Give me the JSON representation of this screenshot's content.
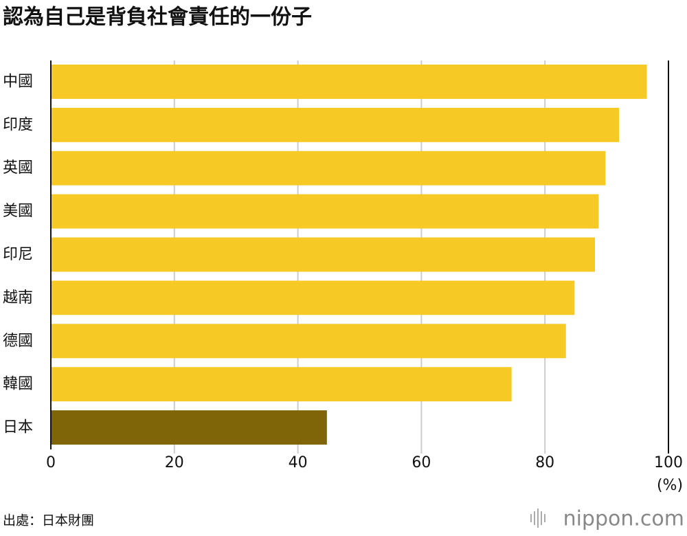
{
  "chart_data": {
    "type": "bar",
    "orientation": "horizontal",
    "title": "認為自己是背負社會責任的一份子",
    "categories": [
      "中國",
      "印度",
      "英國",
      "美國",
      "印尼",
      "越南",
      "德國",
      "韓國",
      "日本"
    ],
    "values": [
      96.5,
      92.0,
      89.8,
      88.7,
      88.1,
      84.8,
      83.4,
      74.6,
      44.7
    ],
    "colors": [
      "#f6c924",
      "#f6c924",
      "#f6c924",
      "#f6c924",
      "#f6c924",
      "#f6c924",
      "#f6c924",
      "#f6c924",
      "#806508"
    ],
    "xlim": [
      0,
      100
    ],
    "xticks": [
      0,
      20,
      40,
      60,
      80,
      100
    ],
    "x_unit": "(%)",
    "grid": true,
    "source": "出處：日本財團",
    "logo": "nippon.com"
  }
}
